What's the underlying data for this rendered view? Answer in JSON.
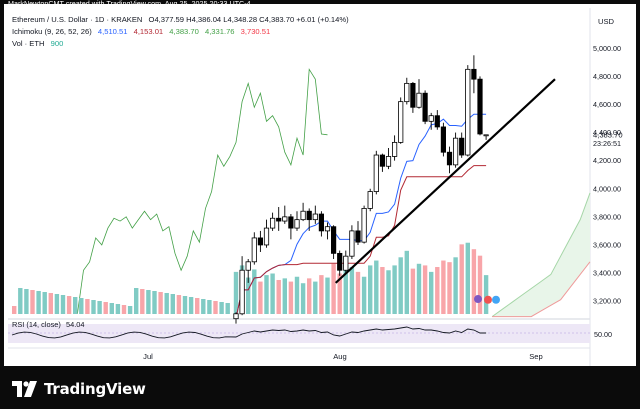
{
  "header": "MarkNewtonCMT created with TradingView.com, Aug 25, 2025 20:33 UTC-4",
  "legend": {
    "symbol": "Ethereum / U.S. Dollar · 1D · KRAKEN",
    "ohlc": "O4,377.59  H4,386.04  L4,348.28  C4,383.70  +6.01 (+0.14%)",
    "change_color": "#089981",
    "ichimoku_label": "Ichimoku (9, 26, 52, 26)",
    "ichimoku_values": [
      {
        "value": "4,510.51",
        "color": "#2962ff"
      },
      {
        "value": "4,153.01",
        "color": "#b22833"
      },
      {
        "value": "4,383.70",
        "color": "#43a047"
      },
      {
        "value": "4,331.76",
        "color": "#43a047"
      },
      {
        "value": "3,730.51",
        "color": "#f23645"
      }
    ],
    "vol_label": "Vol · ETH",
    "vol_value": "900",
    "vol_value_color": "#22ab94"
  },
  "price_axis": {
    "currency": "USD",
    "ticks": [
      "5,000.00",
      "4,800.00",
      "4,600.00",
      "4,400.00",
      "4,200.00",
      "4,000.00",
      "3,800.00",
      "3,600.00",
      "3,400.00",
      "3,200.00"
    ],
    "last_price": "4,383.70",
    "countdown": "23:26:51"
  },
  "rsi": {
    "label": "RSI (14, close)",
    "value": "54.04",
    "tick": "50.00"
  },
  "time_axis": [
    "Jul",
    "Aug",
    "Sep"
  ],
  "brand": "TradingView",
  "colors": {
    "up": "#089981",
    "down": "#000000",
    "conversion": "#2962ff",
    "base": "#b22833",
    "lagging": "#43a047",
    "cloud_top": "#a5d6a7",
    "cloud_bottom": "#ef9a9a",
    "cloud_fill": "#e8f5e9",
    "vol_up": "#80cbc4",
    "vol_down": "#f8a5a9",
    "rsi": "#131722",
    "rsi_band": "#ede7f6",
    "trendline": "#000000"
  },
  "chart_data": {
    "type": "candlestick",
    "title": "Ethereum / U.S. Dollar · 1D · KRAKEN",
    "y_range": [
      3080,
      5130
    ],
    "candles": [
      {
        "o": 3075,
        "h": 3120,
        "l": 3040,
        "c": 3110
      },
      {
        "o": 3110,
        "h": 3520,
        "l": 3100,
        "c": 3420
      },
      {
        "o": 3420,
        "h": 3500,
        "l": 3330,
        "c": 3480
      },
      {
        "o": 3480,
        "h": 3690,
        "l": 3460,
        "c": 3650
      },
      {
        "o": 3650,
        "h": 3700,
        "l": 3550,
        "c": 3600
      },
      {
        "o": 3600,
        "h": 3780,
        "l": 3580,
        "c": 3720
      },
      {
        "o": 3720,
        "h": 3830,
        "l": 3700,
        "c": 3790
      },
      {
        "o": 3790,
        "h": 3870,
        "l": 3700,
        "c": 3770
      },
      {
        "o": 3770,
        "h": 3880,
        "l": 3750,
        "c": 3800
      },
      {
        "o": 3800,
        "h": 3820,
        "l": 3640,
        "c": 3720
      },
      {
        "o": 3720,
        "h": 3840,
        "l": 3700,
        "c": 3780
      },
      {
        "o": 3780,
        "h": 3900,
        "l": 3770,
        "c": 3840
      },
      {
        "o": 3840,
        "h": 3860,
        "l": 3700,
        "c": 3780
      },
      {
        "o": 3780,
        "h": 3880,
        "l": 3750,
        "c": 3820
      },
      {
        "o": 3820,
        "h": 3840,
        "l": 3660,
        "c": 3700
      },
      {
        "o": 3700,
        "h": 3760,
        "l": 3640,
        "c": 3730
      },
      {
        "o": 3730,
        "h": 3740,
        "l": 3500,
        "c": 3540
      },
      {
        "o": 3540,
        "h": 3560,
        "l": 3380,
        "c": 3420
      },
      {
        "o": 3420,
        "h": 3560,
        "l": 3400,
        "c": 3520
      },
      {
        "o": 3520,
        "h": 3740,
        "l": 3500,
        "c": 3700
      },
      {
        "o": 3700,
        "h": 3770,
        "l": 3600,
        "c": 3620
      },
      {
        "o": 3620,
        "h": 3880,
        "l": 3610,
        "c": 3860
      },
      {
        "o": 3860,
        "h": 4000,
        "l": 3840,
        "c": 3980
      },
      {
        "o": 3980,
        "h": 4270,
        "l": 3960,
        "c": 4240
      },
      {
        "o": 4240,
        "h": 4250,
        "l": 4120,
        "c": 4160
      },
      {
        "o": 4160,
        "h": 4290,
        "l": 4140,
        "c": 4230
      },
      {
        "o": 4230,
        "h": 4380,
        "l": 4200,
        "c": 4330
      },
      {
        "o": 4330,
        "h": 4650,
        "l": 4320,
        "c": 4620
      },
      {
        "o": 4620,
        "h": 4790,
        "l": 4600,
        "c": 4750
      },
      {
        "o": 4750,
        "h": 4760,
        "l": 4540,
        "c": 4580
      },
      {
        "o": 4580,
        "h": 4780,
        "l": 4570,
        "c": 4680
      },
      {
        "o": 4680,
        "h": 4700,
        "l": 4460,
        "c": 4480
      },
      {
        "o": 4480,
        "h": 4540,
        "l": 4420,
        "c": 4520
      },
      {
        "o": 4520,
        "h": 4560,
        "l": 4420,
        "c": 4440
      },
      {
        "o": 4440,
        "h": 4470,
        "l": 4230,
        "c": 4260
      },
      {
        "o": 4260,
        "h": 4300,
        "l": 4110,
        "c": 4170
      },
      {
        "o": 4170,
        "h": 4400,
        "l": 4150,
        "c": 4360
      },
      {
        "o": 4360,
        "h": 4400,
        "l": 4220,
        "c": 4240
      },
      {
        "o": 4240,
        "h": 4880,
        "l": 4230,
        "c": 4850
      },
      {
        "o": 4850,
        "h": 4950,
        "l": 4680,
        "c": 4780
      },
      {
        "o": 4780,
        "h": 4800,
        "l": 4380,
        "c": 4390
      },
      {
        "o": 4378,
        "h": 4386,
        "l": 4348,
        "c": 4384
      }
    ],
    "volumes": [
      52,
      60,
      45,
      55,
      40,
      48,
      50,
      42,
      44,
      40,
      46,
      38,
      44,
      40,
      48,
      45,
      62,
      50,
      55,
      58,
      52,
      46,
      60,
      66,
      58,
      54,
      60,
      70,
      78,
      56,
      62,
      60,
      52,
      58,
      66,
      64,
      70,
      86,
      88,
      80,
      72,
      48
    ],
    "rsi_values": [
      46,
      52,
      55,
      58,
      56,
      58,
      60,
      59,
      60,
      57,
      58,
      60,
      58,
      59,
      55,
      56,
      50,
      48,
      52,
      56,
      55,
      58,
      60,
      62,
      60,
      61,
      62,
      64,
      66,
      62,
      63,
      60,
      60,
      58,
      55,
      54,
      58,
      55,
      62,
      60,
      54,
      54
    ]
  }
}
